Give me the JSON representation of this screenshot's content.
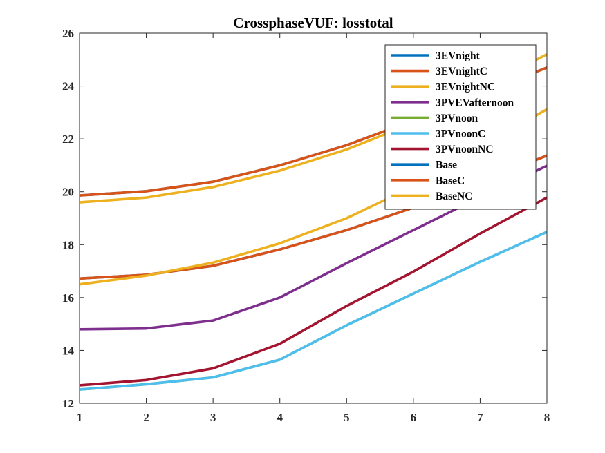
{
  "chart_data": {
    "type": "line",
    "title": "CrossphaseVUF: losstotal",
    "xlabel": "",
    "ylabel": "",
    "x": [
      1,
      2,
      3,
      4,
      5,
      6,
      7,
      8
    ],
    "xlim": [
      1,
      8
    ],
    "ylim": [
      12,
      26
    ],
    "xticks": [
      1,
      2,
      3,
      4,
      5,
      6,
      7,
      8
    ],
    "yticks": [
      12,
      14,
      16,
      18,
      20,
      22,
      24,
      26
    ],
    "grid": false,
    "legend_position": "top-right",
    "series": [
      {
        "name": "3EVnight",
        "color": "#0072BD",
        "values": [
          19.86,
          20.02,
          20.38,
          21.0,
          21.76,
          22.7,
          23.7,
          24.7
        ]
      },
      {
        "name": "3EVnightC",
        "color": "#D95319",
        "values": [
          19.86,
          20.02,
          20.38,
          21.0,
          21.76,
          22.7,
          23.7,
          24.7
        ]
      },
      {
        "name": "3EVnightNC",
        "color": "#EDB120",
        "values": [
          19.6,
          19.78,
          20.18,
          20.8,
          21.6,
          22.6,
          23.9,
          25.2
        ]
      },
      {
        "name": "3PVEVafternoon",
        "color": "#7E2F8E",
        "values": [
          14.8,
          14.83,
          15.13,
          16.0,
          17.3,
          18.55,
          19.8,
          20.98
        ]
      },
      {
        "name": "3PVnoon",
        "color": "#77AC30",
        "values": [
          12.52,
          12.72,
          12.98,
          13.65,
          14.95,
          16.15,
          17.35,
          18.48
        ]
      },
      {
        "name": "3PVnoonC",
        "color": "#4DBEEE",
        "values": [
          12.52,
          12.72,
          12.98,
          13.65,
          14.95,
          16.15,
          17.35,
          18.48
        ]
      },
      {
        "name": "3PVnoonNC",
        "color": "#A2142F",
        "values": [
          12.68,
          12.88,
          13.32,
          14.25,
          15.68,
          16.98,
          18.42,
          19.78
        ]
      },
      {
        "name": "Base",
        "color": "#0072BD",
        "values": [
          16.72,
          16.86,
          17.2,
          17.82,
          18.55,
          19.4,
          20.38,
          21.37
        ]
      },
      {
        "name": "BaseC",
        "color": "#D95319",
        "values": [
          16.72,
          16.86,
          17.2,
          17.82,
          18.55,
          19.4,
          20.38,
          21.37
        ]
      },
      {
        "name": "BaseNC",
        "color": "#EDB120",
        "values": [
          16.5,
          16.83,
          17.32,
          18.05,
          19.0,
          20.2,
          21.7,
          23.12
        ]
      }
    ]
  }
}
